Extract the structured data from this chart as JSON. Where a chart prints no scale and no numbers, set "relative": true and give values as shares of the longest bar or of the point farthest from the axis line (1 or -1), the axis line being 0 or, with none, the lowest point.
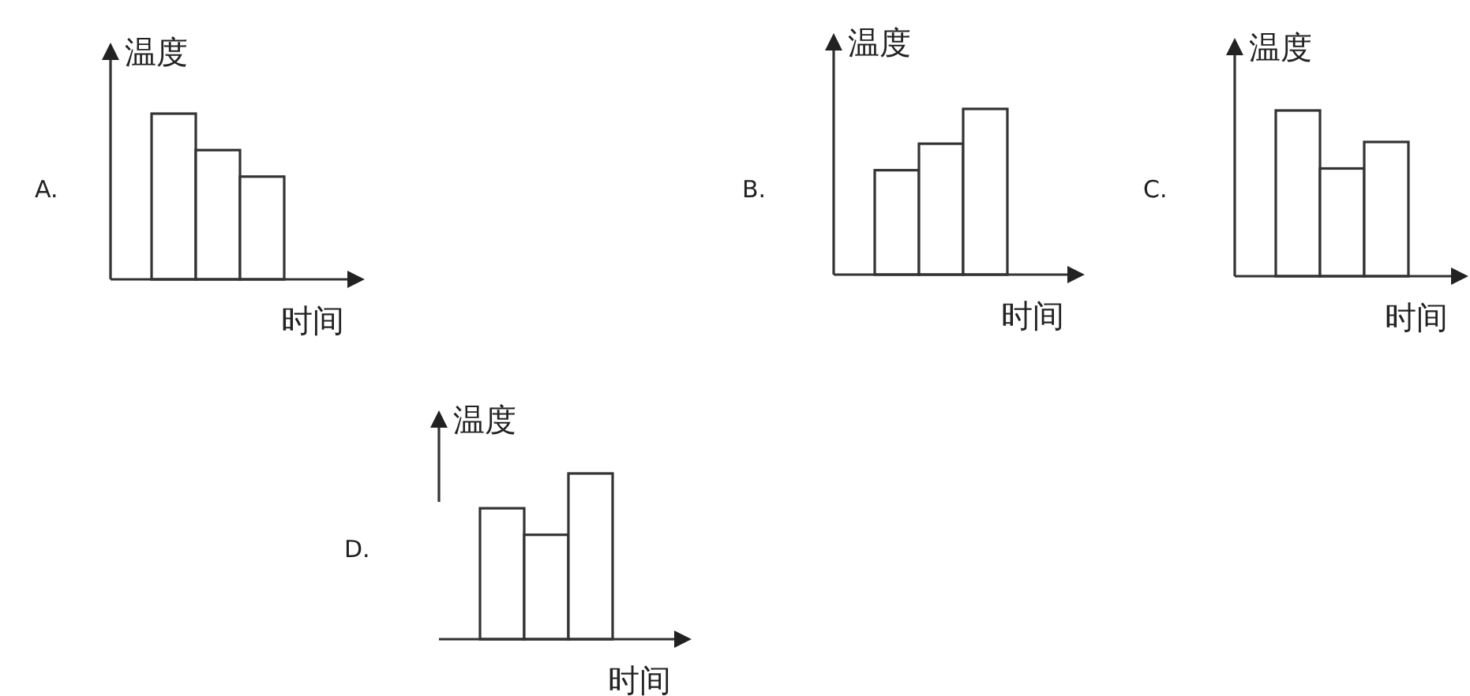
{
  "chart_data": [
    {
      "type": "bar",
      "title": "A.",
      "xlabel": "时间",
      "ylabel": "温度",
      "relative": true,
      "color": "#ffffff",
      "categories": [
        null,
        null,
        null
      ],
      "values": [
        1,
        0.78,
        0.62
      ]
    },
    {
      "type": "bar",
      "title": "B.",
      "xlabel": "时间",
      "ylabel": "温度",
      "relative": true,
      "color": "#ffffff",
      "categories": [
        null,
        null,
        null
      ],
      "values": [
        0.63,
        0.79,
        1
      ]
    },
    {
      "type": "bar",
      "title": "C.",
      "xlabel": "时间",
      "ylabel": "温度",
      "relative": true,
      "color": "#ffffff",
      "categories": [
        null,
        null,
        null
      ],
      "values": [
        1,
        0.65,
        0.81
      ]
    },
    {
      "type": "bar",
      "title": "D.",
      "xlabel": "时间",
      "ylabel": "温度",
      "relative": true,
      "color": "#ffffff",
      "categories": [
        null,
        null,
        null
      ],
      "values": [
        0.79,
        0.63,
        1
      ]
    }
  ]
}
